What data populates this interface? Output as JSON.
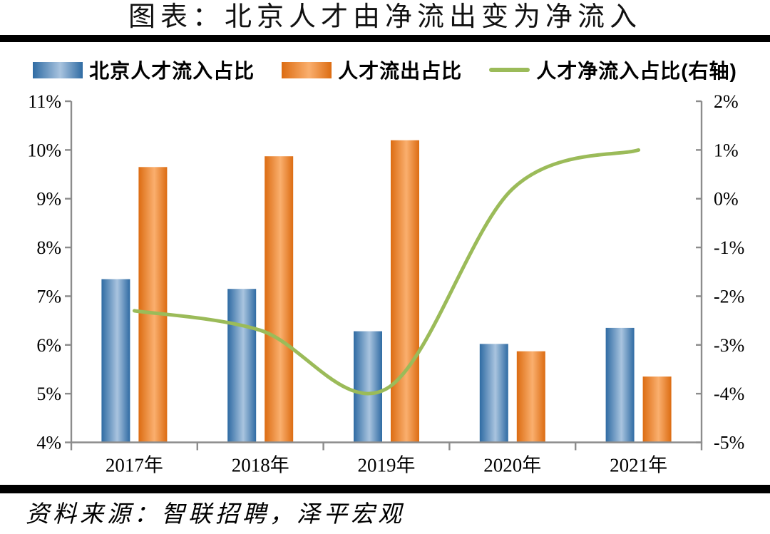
{
  "title": "图表：北京人才由净流出变为净流入",
  "source_note": "资料来源：智联招聘，泽平宏观",
  "legend": {
    "items": [
      {
        "label": "北京人才流入占比",
        "marker": "bar-blue"
      },
      {
        "label": "人才流出占比",
        "marker": "bar-orange"
      },
      {
        "label": "人才净流入占比(右轴)",
        "marker": "line-green"
      }
    ]
  },
  "colors": {
    "inflow_dark": "#2F6BA3",
    "inflow_light": "#A9C4DF",
    "outflow_dark": "#DC6C12",
    "outflow_light": "#FAAF6E",
    "net_line": "#9BBB59",
    "axis": "#8C8C8C",
    "divider": "#000000",
    "text": "#000000"
  },
  "chart_data": {
    "type": "bar",
    "subtype": "combo-bar-line",
    "title": "图表：北京人才由净流出变为净流入",
    "categories": [
      "2017年",
      "2018年",
      "2019年",
      "2020年",
      "2021年"
    ],
    "series": [
      {
        "name": "北京人才流入占比",
        "type": "bar",
        "axis": "left",
        "values": [
          7.35,
          7.15,
          6.28,
          6.02,
          6.35
        ]
      },
      {
        "name": "人才流出占比",
        "type": "bar",
        "axis": "left",
        "values": [
          9.65,
          9.87,
          10.2,
          5.87,
          5.35
        ]
      },
      {
        "name": "人才净流入占比(右轴)",
        "type": "line",
        "axis": "right",
        "values": [
          -2.3,
          -2.7,
          -3.9,
          0.2,
          1.0
        ]
      }
    ],
    "left_axis": {
      "min": 4,
      "max": 11,
      "step": 1,
      "tick_labels": [
        "11%",
        "10%",
        "9%",
        "8%",
        "7%",
        "6%",
        "5%",
        "4%"
      ],
      "unit": "%"
    },
    "right_axis": {
      "min": -5,
      "max": 2,
      "step": 1,
      "tick_labels": [
        "2%",
        "1%",
        "0%",
        "-1%",
        "-2%",
        "-3%",
        "-4%",
        "-5%"
      ],
      "unit": "%"
    },
    "grid": false,
    "legend_position": "top",
    "line_smooth": true
  }
}
